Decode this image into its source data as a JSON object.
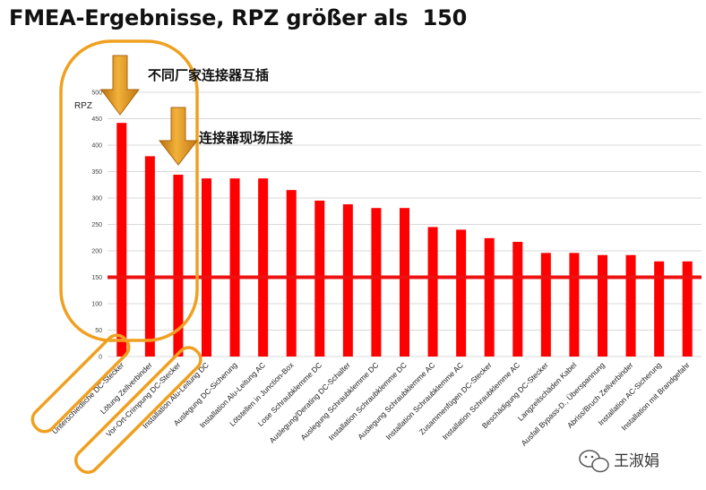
{
  "title": "FMEA-Ergebnisse, RPZ größer als  150",
  "chart_data": {
    "type": "bar",
    "title": "FMEA-Ergebnisse, RPZ größer als  150",
    "ylabel": "RPZ",
    "xlabel": "",
    "ylim": [
      0,
      500
    ],
    "yticks": [
      0,
      50,
      100,
      150,
      200,
      250,
      300,
      350,
      400,
      450,
      500
    ],
    "grid": true,
    "threshold": 150,
    "categories": [
      "Unterschiedliche DC-Stecker",
      "Lötung Zellverbinder",
      "Vor-Ort-Crimpung DC-Stecker",
      "Installation Alu-Leitung DC",
      "Auslegung DC-Sicherung",
      "Installation Alu-Leitung AC",
      "Lötstellen in Junction-Box",
      "Lose Schraubklemme DC",
      "Auslegung/Derating DC-Schalter",
      "Auslegung Schraubklemme DC",
      "Installation Schraubklemme DC",
      "Auslegung Schraubklemme AC",
      "Installation Schraubklemme AC",
      "Zusammenfügen DC-Stecker",
      "Installation Schraubklemme AC",
      "Beschädigung DC-Stecker",
      "Langzeitschäden Kabel",
      "Ausfall Bypass-D., Überspannung",
      "Abriss/Bruch Zellverbinder",
      "Installation AC-Sicherung",
      "Installation mit Brandgefahr"
    ],
    "values": [
      442,
      379,
      344,
      337,
      337,
      337,
      315,
      295,
      288,
      281,
      281,
      245,
      240,
      224,
      217,
      196,
      196,
      192,
      192,
      180,
      180
    ],
    "colors": {
      "bar": "#ff0000",
      "threshold": "#ee1111",
      "grid": "#d9d9d9",
      "highlight": "#f0a020",
      "arrow": "#e39a22"
    }
  },
  "annotations": {
    "callout_1": "不同厂家连接器互插",
    "callout_2": "连接器现场压接"
  },
  "watermark": {
    "text": "王淑娟",
    "icon": "wechat-icon"
  }
}
